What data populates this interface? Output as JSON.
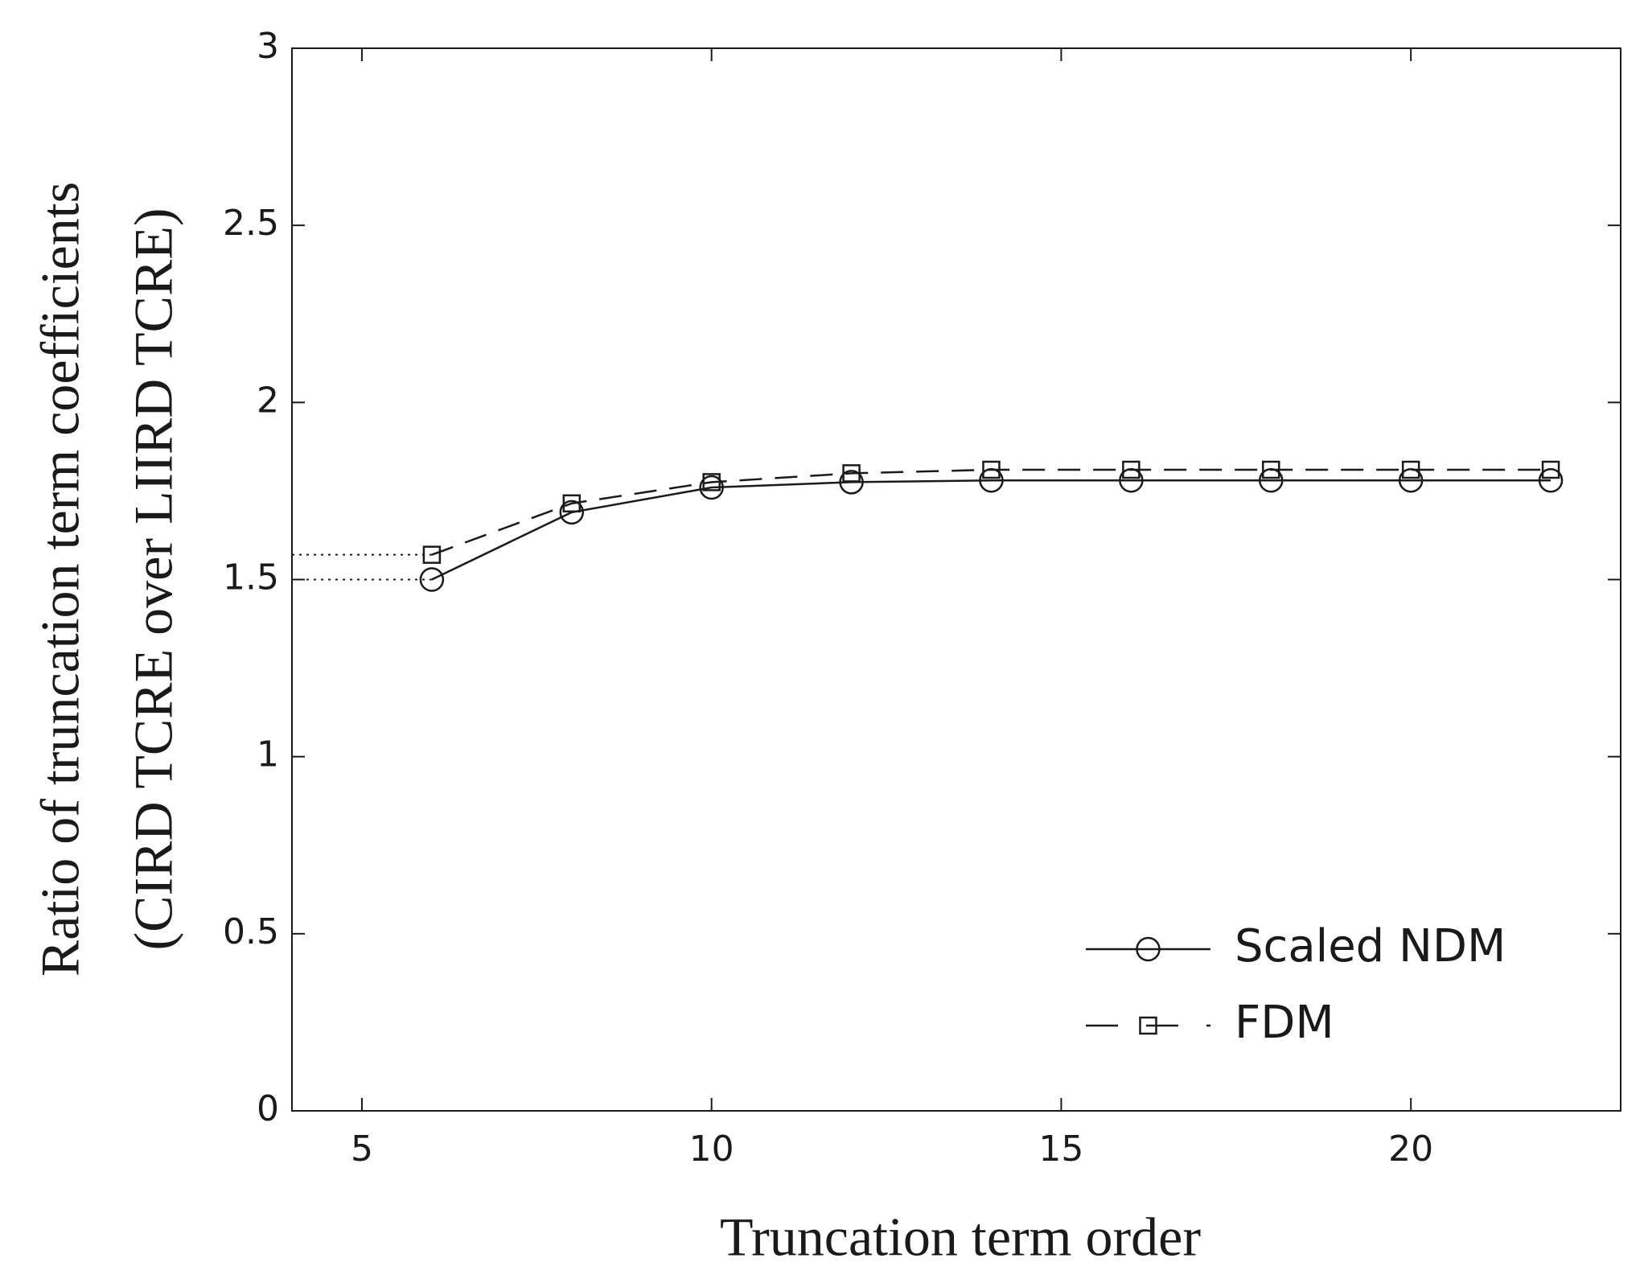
{
  "chart_data": {
    "type": "line",
    "xlabel": "Truncation term order",
    "ylabel": [
      "Ratio of truncation term coefficients",
      "(CIRD TCRE over LIIRD TCRE)"
    ],
    "x": [
      6,
      8,
      10,
      12,
      14,
      16,
      18,
      20,
      22
    ],
    "series": [
      {
        "name": "Scaled NDM",
        "color": "#1a1a1a",
        "linestyle": "solid",
        "marker": "circle",
        "values": [
          1.5,
          1.69,
          1.76,
          1.775,
          1.78,
          1.78,
          1.78,
          1.78,
          1.78
        ]
      },
      {
        "name": "FDM",
        "color": "#1a1a1a",
        "linestyle": "dashed",
        "marker": "square",
        "values": [
          1.57,
          1.715,
          1.775,
          1.8,
          1.81,
          1.81,
          1.81,
          1.81,
          1.81
        ]
      }
    ],
    "xlim": [
      4,
      23
    ],
    "xticks": [
      5,
      10,
      15,
      20
    ],
    "ylim": [
      0,
      3
    ],
    "yticks": [
      0,
      0.5,
      1,
      1.5,
      2,
      2.5,
      3
    ],
    "grid": false,
    "legend": "lower right"
  }
}
